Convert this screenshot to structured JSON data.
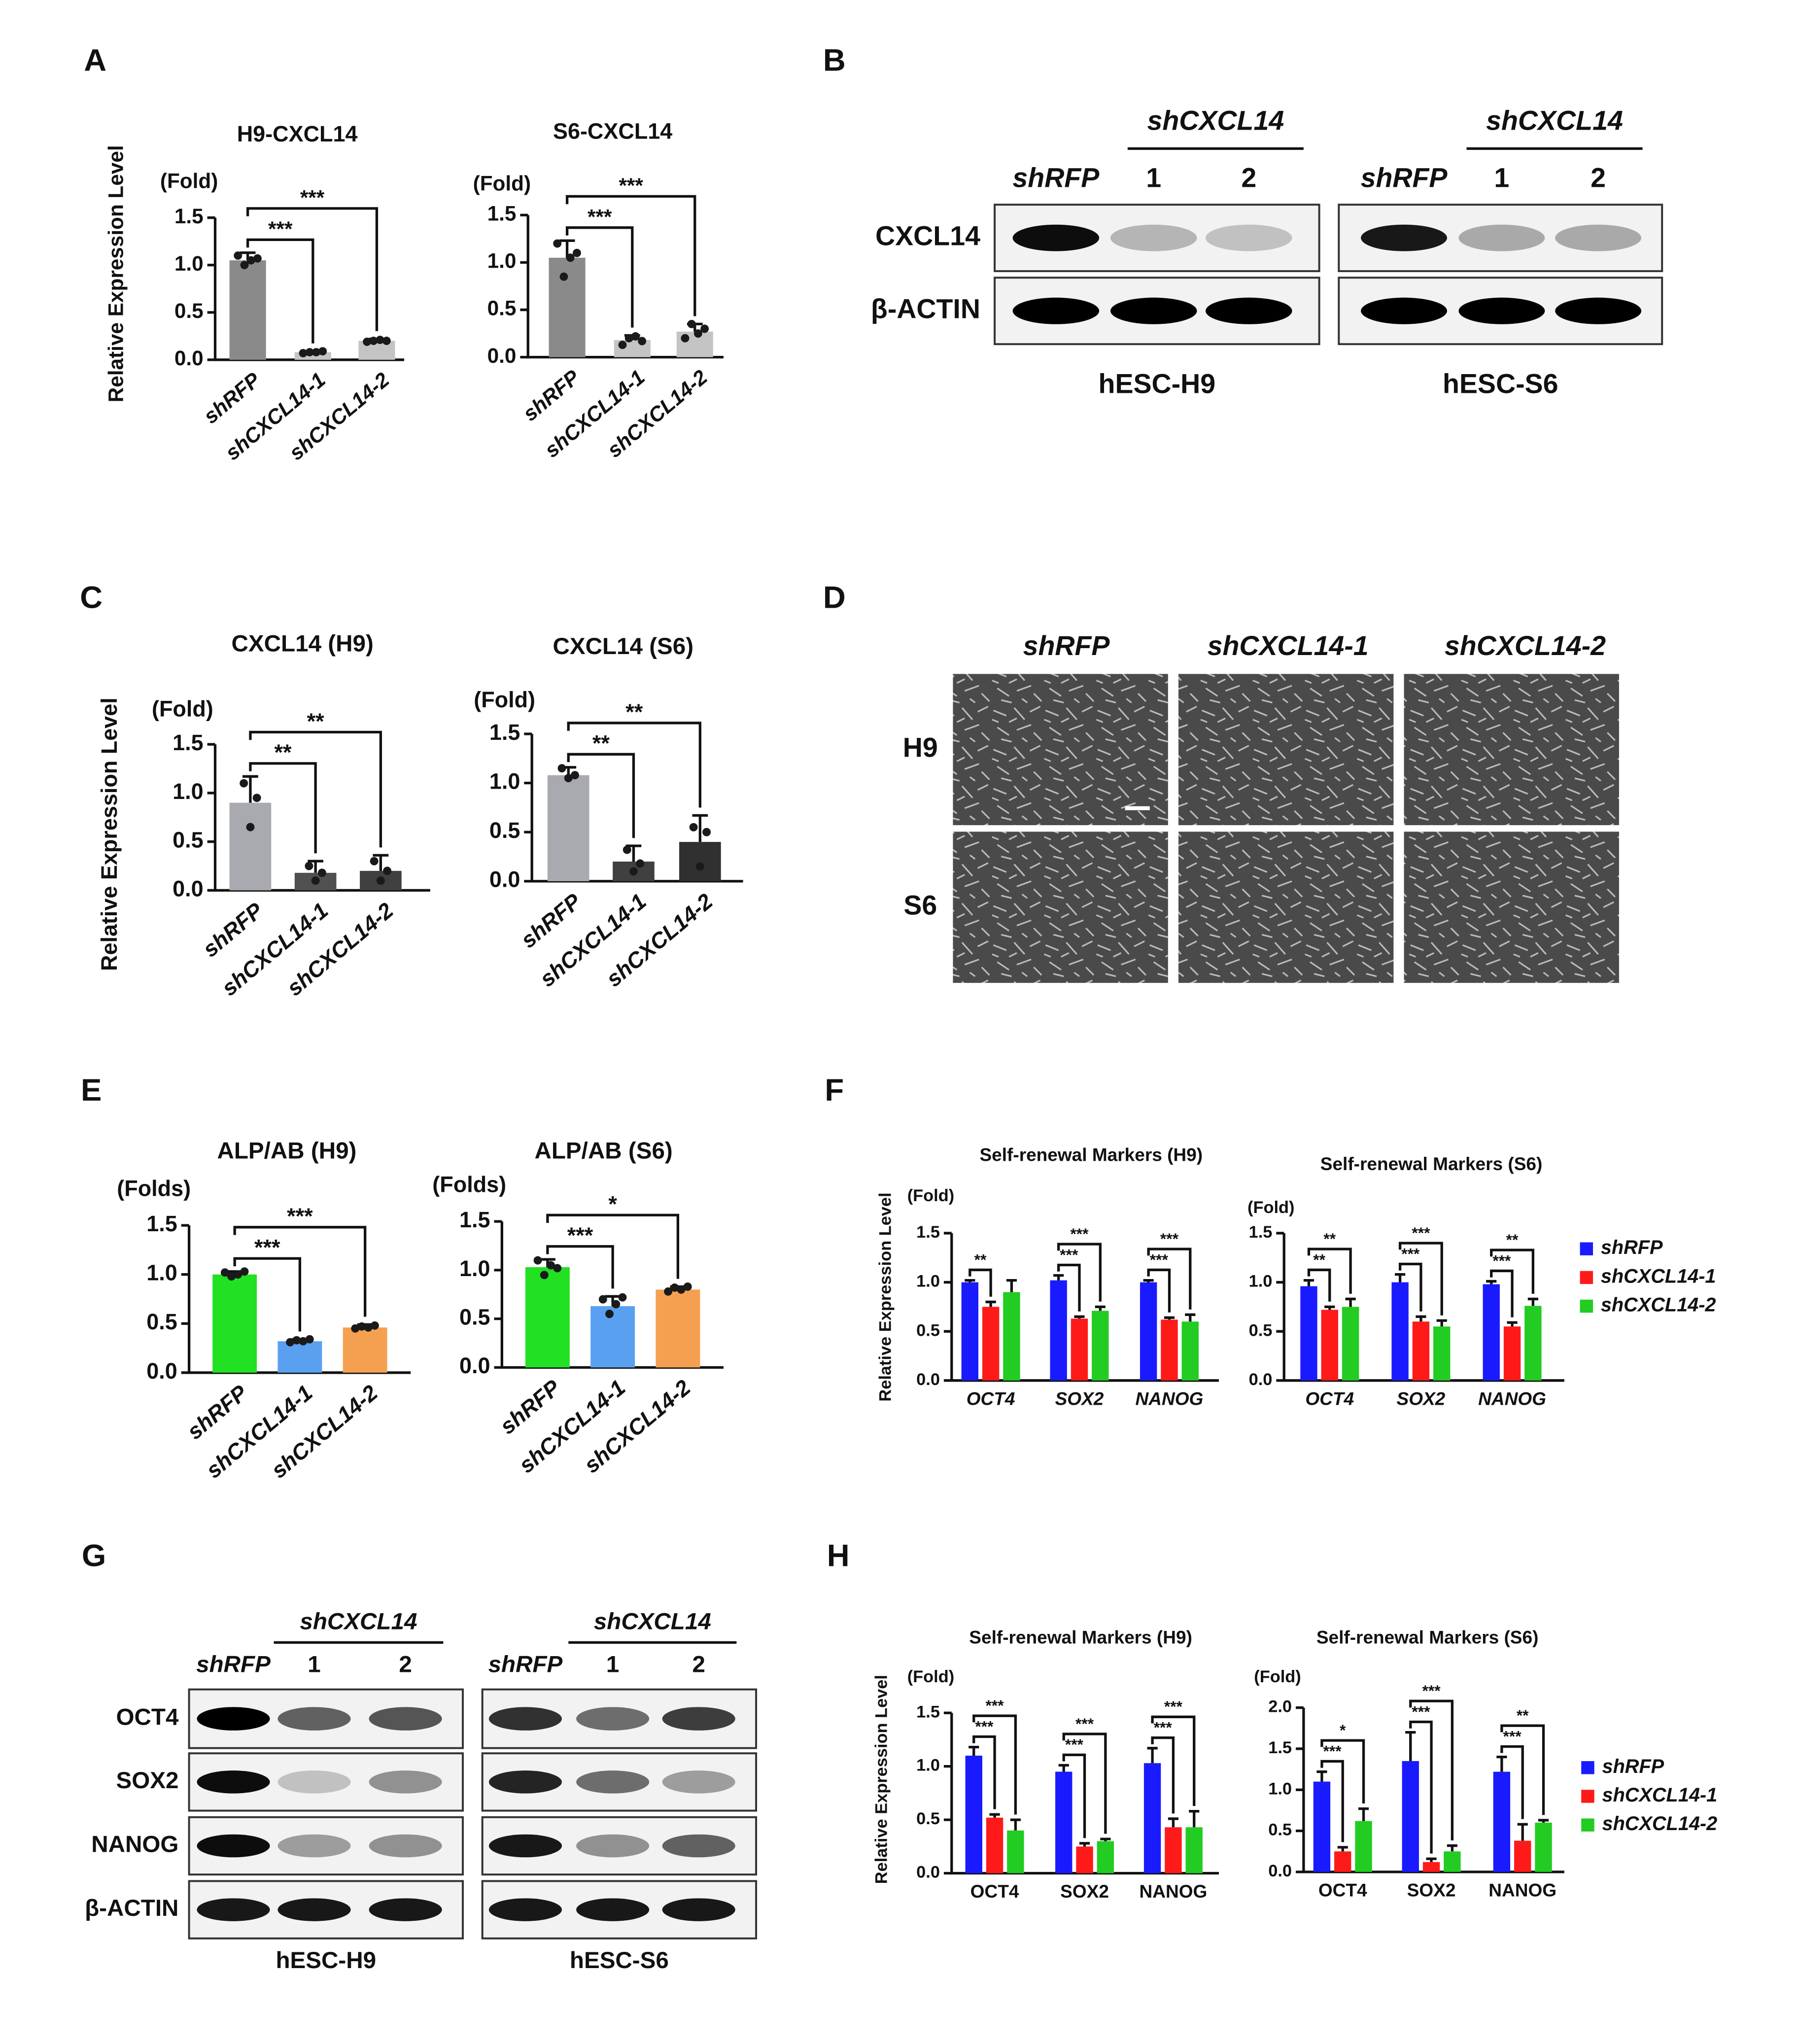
{
  "panel_labels": [
    "A",
    "B",
    "C",
    "D",
    "E",
    "F",
    "G",
    "H"
  ],
  "chart_data": [
    {
      "type": "bar",
      "title": "H9-CXCL14",
      "unit_label": "(Fold)",
      "ylabel": "Relative Expression Level",
      "categories": [
        "shRFP",
        "shCXCL14-1",
        "shCXCL14-2"
      ],
      "values": [
        1.05,
        0.08,
        0.2
      ],
      "errors": [
        0.08,
        0.01,
        0.02
      ],
      "points": [
        [
          1.1,
          1.0,
          1.05,
          1.07
        ],
        [
          0.07,
          0.08,
          0.08,
          0.09
        ],
        [
          0.19,
          0.2,
          0.21,
          0.2
        ]
      ],
      "colors": [
        "#8a8a8a",
        "#c4c4c4",
        "#c4c4c4"
      ],
      "annotations": [
        "***",
        "***"
      ],
      "ylim": [
        0,
        1.5
      ],
      "yticks": [
        {
          "value": 0,
          "label": "0.0"
        },
        0.5,
        {
          "value": 1,
          "label": "1.0"
        },
        1.5
      ]
    },
    {
      "type": "bar",
      "title": "S6-CXCL14",
      "unit_label": "(Fold)",
      "categories": [
        "shRFP",
        "shCXCL14-1",
        "shCXCL14-2"
      ],
      "values": [
        1.05,
        0.18,
        0.27
      ],
      "errors": [
        0.18,
        0.05,
        0.08
      ],
      "points": [
        [
          1.2,
          0.85,
          1.05,
          1.1
        ],
        [
          0.13,
          0.2,
          0.22,
          0.17
        ],
        [
          0.2,
          0.35,
          0.25,
          0.3
        ]
      ],
      "colors": [
        "#8a8a8a",
        "#c4c4c4",
        "#c4c4c4"
      ],
      "annotations": [
        "***",
        "***"
      ],
      "ylim": [
        0,
        1.5
      ],
      "yticks": [
        {
          "value": 0,
          "label": "0.0"
        },
        0.5,
        {
          "value": 1,
          "label": "1.0"
        },
        1.5
      ]
    },
    {
      "type": "bar",
      "title": "CXCL14 (H9)",
      "unit_label": "(Fold)",
      "ylabel": "Relative Expression Level",
      "categories": [
        "shRFP",
        "shCXCL14-1",
        "shCXCL14-2"
      ],
      "values": [
        0.9,
        0.18,
        0.2
      ],
      "errors": [
        0.27,
        0.12,
        0.16
      ],
      "points": [
        [
          1.1,
          0.65,
          0.95
        ],
        [
          0.25,
          0.1,
          0.18
        ],
        [
          0.3,
          0.1,
          0.2
        ]
      ],
      "colors": [
        "#a9a9b0",
        "#505050",
        "#404040"
      ],
      "annotations": [
        "**",
        "**"
      ],
      "ylim": [
        0,
        1.5
      ],
      "yticks": [
        {
          "value": 0,
          "label": "0.0"
        },
        0.5,
        {
          "value": 1,
          "label": "1.0"
        },
        1.5
      ]
    },
    {
      "type": "bar",
      "title": "CXCL14 (S6)",
      "unit_label": "(Fold)",
      "categories": [
        "shRFP",
        "shCXCL14-1",
        "shCXCL14-2"
      ],
      "values": [
        1.08,
        0.2,
        0.4
      ],
      "errors": [
        0.08,
        0.16,
        0.27
      ],
      "points": [
        [
          1.15,
          1.05,
          1.08
        ],
        [
          0.32,
          0.1,
          0.18
        ],
        [
          0.55,
          0.15,
          0.5
        ]
      ],
      "colors": [
        "#a9a9b0",
        "#404040",
        "#303030"
      ],
      "annotations": [
        "**",
        "**"
      ],
      "ylim": [
        0,
        1.5
      ],
      "yticks": [
        {
          "value": 0,
          "label": "0.0"
        },
        0.5,
        {
          "value": 1,
          "label": "1.0"
        },
        1.5
      ]
    },
    {
      "type": "bar",
      "title": "ALP/AB (H9)",
      "unit_label": "(Folds)",
      "categories": [
        "shRFP",
        "shCXCL14-1",
        "shCXCL14-2"
      ],
      "values": [
        1.0,
        0.32,
        0.46
      ],
      "errors": [
        0.03,
        0.02,
        0.03
      ],
      "points": [
        [
          1.02,
          0.98,
          1.0,
          1.03
        ],
        [
          0.31,
          0.33,
          0.32,
          0.34
        ],
        [
          0.45,
          0.47,
          0.46,
          0.48
        ]
      ],
      "colors": [
        "#22e022",
        "#5aa0f0",
        "#f5a050"
      ],
      "annotations": [
        "***",
        "***"
      ],
      "ylim": [
        0,
        1.5
      ],
      "yticks": [
        {
          "value": 0,
          "label": "0.0"
        },
        0.5,
        {
          "value": 1,
          "label": "1.0"
        },
        1.5
      ]
    },
    {
      "type": "bar",
      "title": "ALP/AB (S6)",
      "unit_label": "(Folds)",
      "categories": [
        "shRFP",
        "shCXCL14-1",
        "shCXCL14-2"
      ],
      "values": [
        1.03,
        0.63,
        0.8
      ],
      "errors": [
        0.08,
        0.1,
        0.03
      ],
      "points": [
        [
          1.1,
          0.95,
          1.05,
          1.02
        ],
        [
          0.7,
          0.55,
          0.65,
          0.72
        ],
        [
          0.78,
          0.82,
          0.8,
          0.83
        ]
      ],
      "colors": [
        "#22e022",
        "#5aa0f0",
        "#f5a050"
      ],
      "annotations": [
        "***",
        "*"
      ],
      "ylim": [
        0,
        1.5
      ],
      "yticks": [
        {
          "value": 0,
          "label": "0.0"
        },
        0.5,
        {
          "value": 1,
          "label": "1.0"
        },
        1.5
      ]
    },
    {
      "type": "grouped_bar",
      "title": "Self-renewal Markers (H9)",
      "unit_label": "(Fold)",
      "ylabel": "Relative Expression Level",
      "categories": [
        "OCT4",
        "SOX2",
        "NANOG"
      ],
      "italic_categories": true,
      "legend": false,
      "series": [
        {
          "name": "shRFP",
          "color": "#1a1aff",
          "values": [
            1.0,
            1.02,
            1.0
          ],
          "errors": [
            0.02,
            0.05,
            0.02
          ]
        },
        {
          "name": "shCXCL14-1",
          "color": "#ff1a1a",
          "values": [
            0.75,
            0.63,
            0.62
          ],
          "errors": [
            0.05,
            0.02,
            0.02
          ]
        },
        {
          "name": "shCXCL14-2",
          "color": "#22cc22",
          "values": [
            0.9,
            0.71,
            0.6
          ],
          "errors": [
            0.12,
            0.04,
            0.07
          ]
        }
      ],
      "annotations": [
        [
          "**",
          null
        ],
        [
          "***",
          "***"
        ],
        [
          "***",
          "***"
        ]
      ],
      "ylim": [
        0,
        1.5
      ],
      "yticks": [
        {
          "value": 0,
          "label": "0.0"
        },
        0.5,
        {
          "value": 1,
          "label": "1.0"
        },
        1.5
      ]
    },
    {
      "type": "grouped_bar",
      "title": "Self-renewal Markers (S6)",
      "unit_label": "(Fold)",
      "categories": [
        "OCT4",
        "SOX2",
        "NANOG"
      ],
      "italic_categories": true,
      "legend": true,
      "series": [
        {
          "name": "shRFP",
          "color": "#1a1aff",
          "values": [
            0.96,
            1.0,
            0.98
          ],
          "errors": [
            0.06,
            0.08,
            0.03
          ]
        },
        {
          "name": "shCXCL14-1",
          "color": "#ff1a1a",
          "values": [
            0.72,
            0.6,
            0.55
          ],
          "errors": [
            0.03,
            0.05,
            0.04
          ]
        },
        {
          "name": "shCXCL14-2",
          "color": "#22cc22",
          "values": [
            0.75,
            0.55,
            0.76
          ],
          "errors": [
            0.08,
            0.06,
            0.07
          ]
        }
      ],
      "annotations": [
        [
          "**",
          "**"
        ],
        [
          "***",
          "***"
        ],
        [
          "***",
          "**"
        ]
      ],
      "ylim": [
        0,
        1.5
      ],
      "yticks": [
        {
          "value": 0,
          "label": "0.0"
        },
        0.5,
        {
          "value": 1,
          "label": "1.0"
        },
        1.5
      ]
    },
    {
      "type": "grouped_bar",
      "title": "Self-renewal Markers (H9)",
      "unit_label": "(Fold)",
      "ylabel": "Relative Expression Level",
      "categories": [
        "OCT4",
        "SOX2",
        "NANOG"
      ],
      "italic_categories": false,
      "legend": false,
      "series": [
        {
          "name": "shRFP",
          "color": "#1a1aff",
          "values": [
            1.1,
            0.95,
            1.03
          ],
          "errors": [
            0.08,
            0.06,
            0.14
          ]
        },
        {
          "name": "shCXCL14-1",
          "color": "#ff1a1a",
          "values": [
            0.52,
            0.25,
            0.43
          ],
          "errors": [
            0.03,
            0.03,
            0.08
          ]
        },
        {
          "name": "shCXCL14-2",
          "color": "#22cc22",
          "values": [
            0.4,
            0.3,
            0.43
          ],
          "errors": [
            0.1,
            0.02,
            0.15
          ]
        }
      ],
      "annotations": [
        [
          "***",
          "***"
        ],
        [
          "***",
          "***"
        ],
        [
          "***",
          "***"
        ]
      ],
      "ylim": [
        0,
        1.5
      ],
      "yticks": [
        {
          "value": 0,
          "label": "0.0"
        },
        0.5,
        {
          "value": 1,
          "label": "1.0"
        },
        1.5
      ]
    },
    {
      "type": "grouped_bar",
      "title": "Self-renewal Markers (S6)",
      "unit_label": "(Fold)",
      "categories": [
        "OCT4",
        "SOX2",
        "NANOG"
      ],
      "italic_categories": false,
      "legend": true,
      "series": [
        {
          "name": "shRFP",
          "color": "#1a1aff",
          "values": [
            1.1,
            1.35,
            1.22
          ],
          "errors": [
            0.12,
            0.35,
            0.18
          ]
        },
        {
          "name": "shCXCL14-1",
          "color": "#ff1a1a",
          "values": [
            0.25,
            0.12,
            0.38
          ],
          "errors": [
            0.05,
            0.04,
            0.2
          ]
        },
        {
          "name": "shCXCL14-2",
          "color": "#22cc22",
          "values": [
            0.62,
            0.25,
            0.6
          ],
          "errors": [
            0.15,
            0.07,
            0.03
          ]
        }
      ],
      "annotations": [
        [
          "***",
          "*"
        ],
        [
          "***",
          "***"
        ],
        [
          "***",
          "**"
        ]
      ],
      "ylim": [
        0,
        2
      ],
      "yticks": [
        {
          "value": 0,
          "label": "0.0"
        },
        0.5,
        {
          "value": 1,
          "label": "1.0"
        },
        1.5,
        {
          "value": 2,
          "label": "2.0"
        }
      ]
    }
  ],
  "blots": [
    {
      "rows": [
        "CXCL14",
        "β-ACTIN"
      ],
      "panels": [
        {
          "group_label": "shCXCL14",
          "lanes": [
            "shRFP",
            "1",
            "2"
          ],
          "cell_line": "hESC-H9"
        },
        {
          "group_label": "shCXCL14",
          "lanes": [
            "shRFP",
            "1",
            "2"
          ],
          "cell_line": "hESC-S6"
        }
      ]
    },
    {
      "rows": [
        "OCT4",
        "SOX2",
        "NANOG",
        "β-ACTIN"
      ],
      "panels": [
        {
          "group_label": "shCXCL14",
          "lanes": [
            "shRFP",
            "1",
            "2"
          ],
          "cell_line": "hESC-H9"
        },
        {
          "group_label": "shCXCL14",
          "lanes": [
            "shRFP",
            "1",
            "2"
          ],
          "cell_line": "hESC-S6"
        }
      ]
    }
  ],
  "micrographs": {
    "columns": [
      "shRFP",
      "shCXCL14-1",
      "shCXCL14-2"
    ],
    "rows": [
      "H9",
      "S6"
    ]
  }
}
